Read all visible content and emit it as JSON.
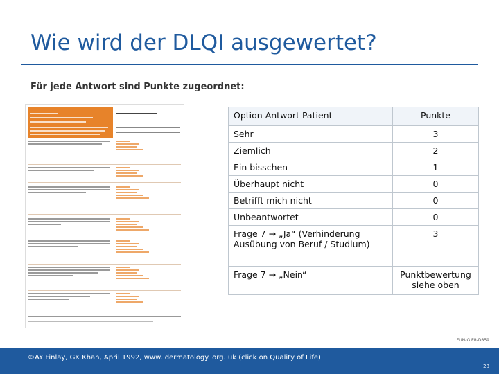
{
  "slide": {
    "title": "Wie wird der DLQI ausgewertet?",
    "subtitle": "Für jede Antwort sind Punkte zugeordnet:",
    "form_code": "FUN-G ER-D859",
    "footer": "©AY Finlay, GK Khan, April 1992, www. dermatology. org. uk (click on Quality of Life)",
    "page_number": "28"
  },
  "table": {
    "headers": [
      "Option Antwort Patient",
      "Punkte"
    ],
    "rows": [
      {
        "option": "Sehr",
        "points": "3"
      },
      {
        "option": "Ziemlich",
        "points": "2"
      },
      {
        "option": "Ein bisschen",
        "points": "1"
      },
      {
        "option": "Überhaupt nicht",
        "points": "0"
      },
      {
        "option": "Betrifft mich nicht",
        "points": "0"
      },
      {
        "option": "Unbeantwortet",
        "points": "0"
      },
      {
        "option": "Frage 7 → „Ja“ (Verhinderung Ausübung von Beruf / Studium)",
        "points": "3"
      },
      {
        "option": "Frage 7 → „Nein“",
        "points": "Punktbewertung siehe oben"
      }
    ]
  },
  "colors": {
    "accent": "#1f5a9e",
    "form_orange": "#e7832a"
  }
}
